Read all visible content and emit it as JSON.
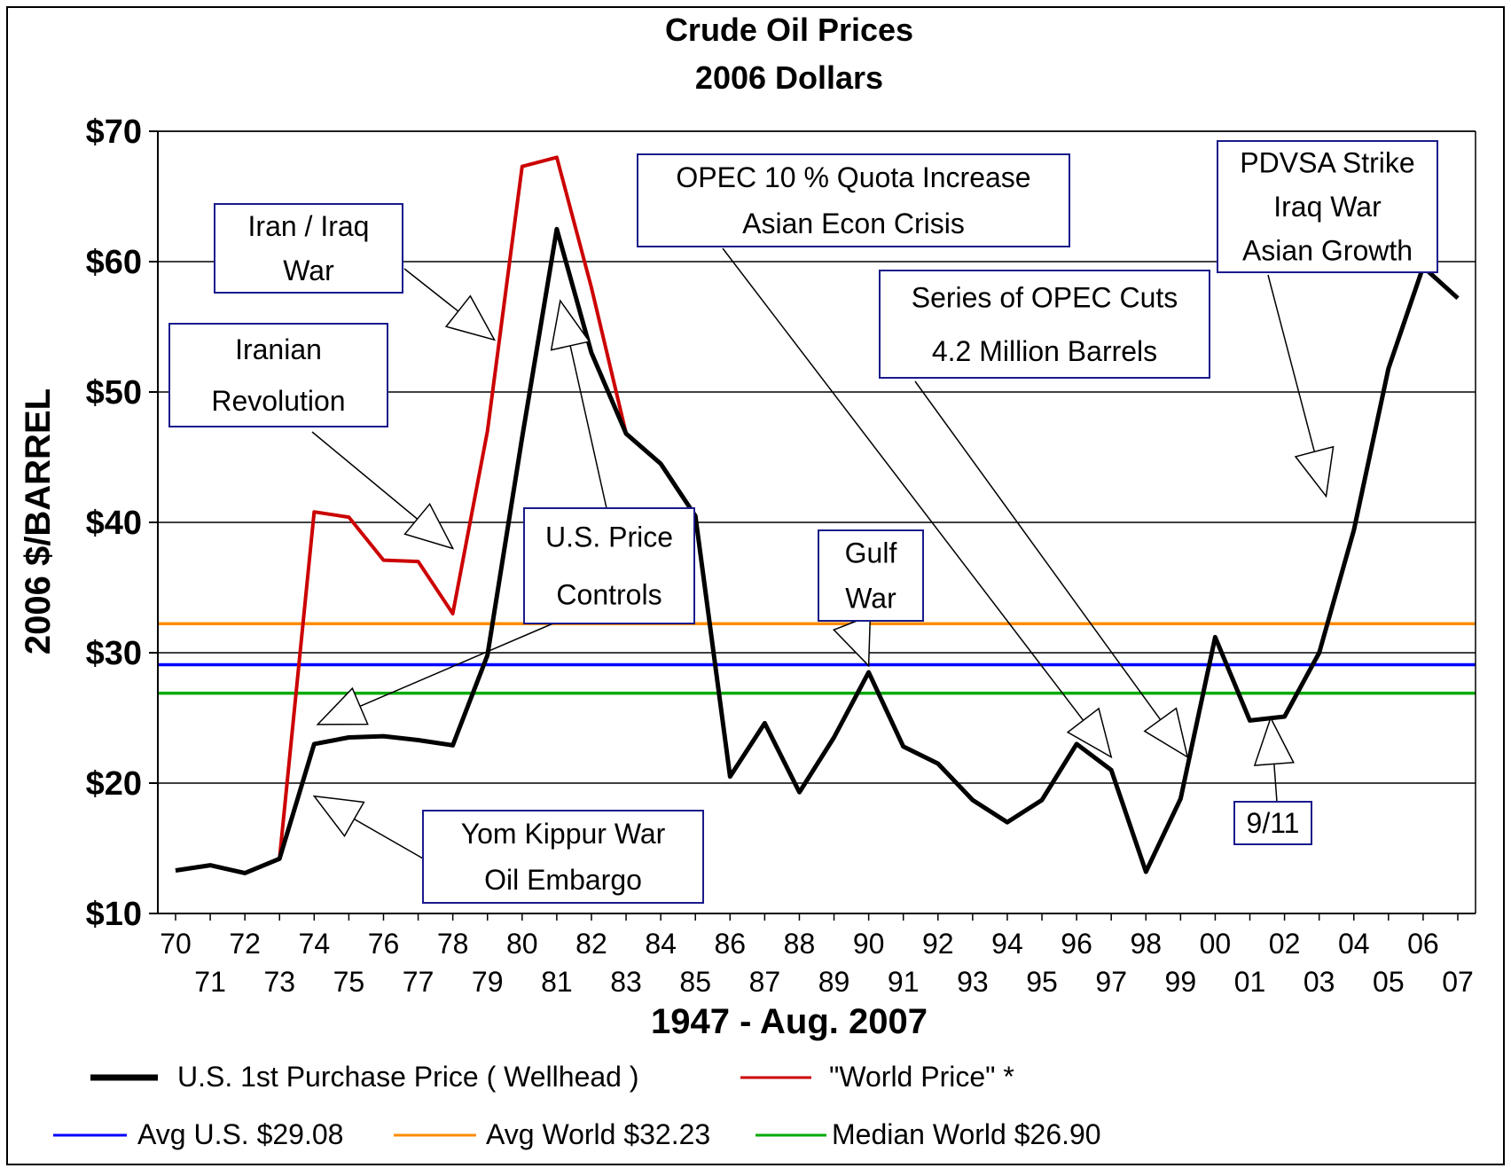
{
  "chart_data": {
    "type": "line",
    "title": "Crude Oil Prices",
    "subtitle": "2006 Dollars",
    "xlabel": "1947 - Aug. 2007",
    "ylabel": "2006 $/BARREL",
    "ylim": [
      10,
      70
    ],
    "xlim": [
      1970,
      2007
    ],
    "grid": "horizontal",
    "legend_position": "bottom",
    "yticks": [
      {
        "value": 10,
        "label": "$10"
      },
      {
        "value": 20,
        "label": "$20"
      },
      {
        "value": 30,
        "label": "$30"
      },
      {
        "value": 40,
        "label": "$40"
      },
      {
        "value": 50,
        "label": "$50"
      },
      {
        "value": 60,
        "label": "$60"
      },
      {
        "value": 70,
        "label": "$70"
      }
    ],
    "xticks": [
      {
        "value": 1970,
        "label": "70"
      },
      {
        "value": 1971,
        "label": "71"
      },
      {
        "value": 1972,
        "label": "72"
      },
      {
        "value": 1973,
        "label": "73"
      },
      {
        "value": 1974,
        "label": "74"
      },
      {
        "value": 1975,
        "label": "75"
      },
      {
        "value": 1976,
        "label": "76"
      },
      {
        "value": 1977,
        "label": "77"
      },
      {
        "value": 1978,
        "label": "78"
      },
      {
        "value": 1979,
        "label": "79"
      },
      {
        "value": 1980,
        "label": "80"
      },
      {
        "value": 1981,
        "label": "81"
      },
      {
        "value": 1982,
        "label": "82"
      },
      {
        "value": 1983,
        "label": "83"
      },
      {
        "value": 1984,
        "label": "84"
      },
      {
        "value": 1985,
        "label": "85"
      },
      {
        "value": 1986,
        "label": "86"
      },
      {
        "value": 1987,
        "label": "87"
      },
      {
        "value": 1988,
        "label": "88"
      },
      {
        "value": 1989,
        "label": "89"
      },
      {
        "value": 1990,
        "label": "90"
      },
      {
        "value": 1991,
        "label": "91"
      },
      {
        "value": 1992,
        "label": "92"
      },
      {
        "value": 1993,
        "label": "93"
      },
      {
        "value": 1994,
        "label": "94"
      },
      {
        "value": 1995,
        "label": "95"
      },
      {
        "value": 1996,
        "label": "96"
      },
      {
        "value": 1997,
        "label": "97"
      },
      {
        "value": 1998,
        "label": "98"
      },
      {
        "value": 1999,
        "label": "99"
      },
      {
        "value": 2000,
        "label": "00"
      },
      {
        "value": 2001,
        "label": "01"
      },
      {
        "value": 2002,
        "label": "02"
      },
      {
        "value": 2003,
        "label": "03"
      },
      {
        "value": 2004,
        "label": "04"
      },
      {
        "value": 2005,
        "label": "05"
      },
      {
        "value": 2006,
        "label": "06"
      },
      {
        "value": 2007,
        "label": "07"
      }
    ],
    "series": [
      {
        "name": "\"World Price\" *",
        "color": "#cc0000",
        "points": [
          [
            1970,
            13.3
          ],
          [
            1971,
            13.7
          ],
          [
            1972,
            13.1
          ],
          [
            1973,
            14.2
          ],
          [
            1974,
            40.8
          ],
          [
            1975,
            40.4
          ],
          [
            1976,
            37.1
          ],
          [
            1977,
            37.0
          ],
          [
            1978,
            33.0
          ],
          [
            1979,
            47.0
          ],
          [
            1980,
            67.3
          ],
          [
            1981,
            68.0
          ],
          [
            1982,
            58.0
          ],
          [
            1983,
            46.8
          ],
          [
            1984,
            44.5
          ],
          [
            1985,
            40.5
          ],
          [
            1986,
            20.5
          ],
          [
            1987,
            24.6
          ],
          [
            1988,
            19.3
          ],
          [
            1989,
            23.5
          ],
          [
            1990,
            28.5
          ],
          [
            1991,
            22.8
          ],
          [
            1992,
            21.5
          ],
          [
            1993,
            18.7
          ],
          [
            1994,
            17.0
          ],
          [
            1995,
            18.7
          ],
          [
            1996,
            23.0
          ],
          [
            1997,
            21.0
          ],
          [
            1998,
            13.2
          ],
          [
            1999,
            18.8
          ],
          [
            2000,
            31.2
          ],
          [
            2001,
            24.8
          ],
          [
            2002,
            25.1
          ],
          [
            2003,
            30.0
          ],
          [
            2004,
            39.4
          ],
          [
            2005,
            51.8
          ],
          [
            2006,
            59.6
          ],
          [
            2007,
            57.2
          ]
        ]
      },
      {
        "name": "U.S. 1st Purchase Price ( Wellhead )",
        "color": "#000000",
        "points": [
          [
            1970,
            13.3
          ],
          [
            1971,
            13.7
          ],
          [
            1972,
            13.1
          ],
          [
            1973,
            14.2
          ],
          [
            1974,
            23.0
          ],
          [
            1975,
            23.5
          ],
          [
            1976,
            23.6
          ],
          [
            1977,
            23.3
          ],
          [
            1978,
            22.9
          ],
          [
            1979,
            29.8
          ],
          [
            1980,
            46.5
          ],
          [
            1981,
            62.5
          ],
          [
            1982,
            53.0
          ],
          [
            1983,
            46.8
          ],
          [
            1984,
            44.5
          ],
          [
            1985,
            40.5
          ],
          [
            1986,
            20.5
          ],
          [
            1987,
            24.6
          ],
          [
            1988,
            19.3
          ],
          [
            1989,
            23.5
          ],
          [
            1990,
            28.5
          ],
          [
            1991,
            22.8
          ],
          [
            1992,
            21.5
          ],
          [
            1993,
            18.7
          ],
          [
            1994,
            17.0
          ],
          [
            1995,
            18.7
          ],
          [
            1996,
            23.0
          ],
          [
            1997,
            21.0
          ],
          [
            1998,
            13.2
          ],
          [
            1999,
            18.8
          ],
          [
            2000,
            31.2
          ],
          [
            2001,
            24.8
          ],
          [
            2002,
            25.1
          ],
          [
            2003,
            30.0
          ],
          [
            2004,
            39.4
          ],
          [
            2005,
            51.8
          ],
          [
            2006,
            59.6
          ],
          [
            2007,
            57.2
          ]
        ]
      }
    ],
    "reference_lines": [
      {
        "name": "Avg U.S. $29.08",
        "value": 29.08,
        "color": "#0000ff"
      },
      {
        "name": "Avg World $32.23",
        "value": 32.23,
        "color": "#ff8c00"
      },
      {
        "name": "Median World  $26.90",
        "value": 26.9,
        "color": "#00aa00"
      }
    ],
    "annotations": [
      {
        "lines": [
          "Iran / Iraq",
          "War"
        ],
        "target": [
          1979.2,
          54.0
        ]
      },
      {
        "lines": [
          "Iranian",
          "Revolution"
        ],
        "target": [
          1978.0,
          38.0
        ]
      },
      {
        "lines": [
          "U.S. Price",
          "Controls"
        ],
        "target": [
          1974.1,
          24.5
        ]
      },
      {
        "lines": [
          "Yom Kippur War",
          "Oil Embargo"
        ],
        "target": [
          1974.0,
          19.0
        ]
      },
      {
        "lines": [
          "Gulf",
          "War"
        ],
        "target": [
          1990.0,
          29.0
        ]
      },
      {
        "lines": [
          "OPEC 10 % Quota Increase",
          "Asian Econ Crisis"
        ],
        "target": [
          1997.0,
          22.0
        ]
      },
      {
        "lines": [
          "Series of OPEC Cuts",
          "4.2 Million Barrels"
        ],
        "target": [
          1999.2,
          22.0
        ]
      },
      {
        "lines": [
          "PDVSA Strike",
          "Iraq War",
          "Asian Growth"
        ],
        "target": [
          2003.2,
          42.0
        ]
      },
      {
        "lines": [
          "9/11"
        ],
        "target": [
          2001.6,
          25.0
        ]
      },
      {
        "lines": [],
        "target": [
          1981.1,
          57.0
        ],
        "from_box": 2
      }
    ],
    "legend": [
      {
        "label": "U.S. 1st Purchase Price ( Wellhead )",
        "color": "#000000"
      },
      {
        "label": "\"World Price\" *",
        "color": "#cc0000"
      },
      {
        "label": "Avg U.S. $29.08",
        "color": "#0000ff"
      },
      {
        "label": "Avg World $32.23",
        "color": "#ff8c00"
      },
      {
        "label": "Median World  $26.90",
        "color": "#00aa00"
      }
    ]
  }
}
